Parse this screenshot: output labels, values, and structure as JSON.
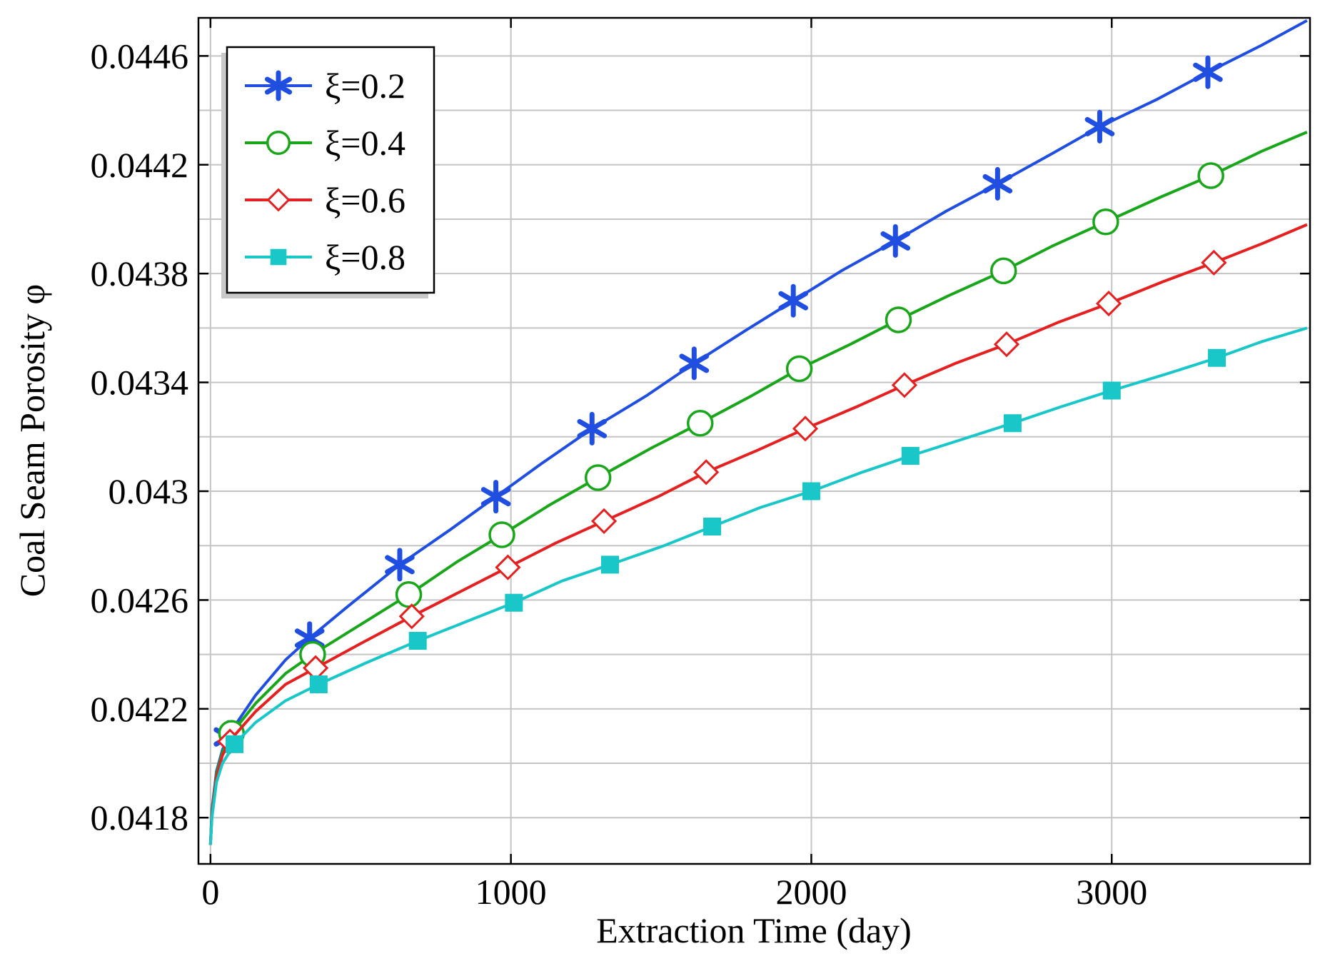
{
  "chart_data": {
    "type": "line",
    "title": "",
    "xlabel": "Extraction Time (day)",
    "ylabel": "Coal Seam Porosity φ",
    "xlim": [
      -40,
      3660
    ],
    "ylim": [
      0.04163,
      0.04474
    ],
    "xticks": [
      0,
      1000,
      2000,
      3000
    ],
    "xtick_labels": [
      "0",
      "1000",
      "2000",
      "3000"
    ],
    "yticks": [
      0.0418,
      0.0422,
      0.0426,
      0.043,
      0.0434,
      0.0438,
      0.0442,
      0.0446
    ],
    "ytick_labels": [
      "0.0418",
      "0.0422",
      "0.0426",
      "0.043",
      "0.0434",
      "0.0438",
      "0.0442",
      "0.0446"
    ],
    "grid": true,
    "legend_position": "top-left",
    "series": [
      {
        "name": "ξ=0.2",
        "color": "#1f4ee0",
        "marker": "asterisk",
        "x": [
          0,
          5,
          20,
          40,
          70,
          150,
          250,
          330,
          450,
          630,
          800,
          950,
          1100,
          1270,
          1450,
          1610,
          1780,
          1940,
          2100,
          2280,
          2450,
          2620,
          2800,
          2960,
          3150,
          3320,
          3500,
          3650
        ],
        "y": [
          0.0417,
          0.04183,
          0.04197,
          0.04205,
          0.04212,
          0.04225,
          0.04238,
          0.04246,
          0.04257,
          0.04273,
          0.04286,
          0.04298,
          0.0431,
          0.04323,
          0.04335,
          0.04347,
          0.04359,
          0.0437,
          0.04381,
          0.04392,
          0.04403,
          0.04413,
          0.04424,
          0.04434,
          0.04444,
          0.04454,
          0.04464,
          0.04473
        ],
        "marker_x": [
          60,
          330,
          630,
          950,
          1270,
          1610,
          1940,
          2280,
          2620,
          2960,
          3320
        ]
      },
      {
        "name": "ξ=0.4",
        "color": "#1aa61a",
        "marker": "circle",
        "x": [
          0,
          5,
          20,
          40,
          70,
          150,
          250,
          340,
          500,
          660,
          820,
          970,
          1130,
          1290,
          1470,
          1630,
          1800,
          1960,
          2130,
          2290,
          2460,
          2640,
          2800,
          2980,
          3160,
          3330,
          3500,
          3650
        ],
        "y": [
          0.0417,
          0.04182,
          0.04196,
          0.04204,
          0.04211,
          0.04222,
          0.04233,
          0.0424,
          0.04251,
          0.04262,
          0.04274,
          0.04284,
          0.04295,
          0.04305,
          0.04316,
          0.04325,
          0.04335,
          0.04345,
          0.04354,
          0.04363,
          0.04372,
          0.04381,
          0.0439,
          0.04399,
          0.04408,
          0.04416,
          0.04425,
          0.04432
        ],
        "marker_x": [
          70,
          340,
          660,
          970,
          1290,
          1630,
          1960,
          2290,
          2640,
          2980,
          3330
        ]
      },
      {
        "name": "ξ=0.6",
        "color": "#e52020",
        "marker": "diamond",
        "x": [
          0,
          5,
          20,
          40,
          70,
          150,
          250,
          350,
          500,
          670,
          830,
          990,
          1150,
          1310,
          1490,
          1650,
          1820,
          1980,
          2150,
          2310,
          2480,
          2650,
          2820,
          2990,
          3170,
          3340,
          3500,
          3650
        ],
        "y": [
          0.0417,
          0.04181,
          0.04195,
          0.04203,
          0.04209,
          0.04219,
          0.04229,
          0.04235,
          0.04244,
          0.04254,
          0.04263,
          0.04272,
          0.04281,
          0.04289,
          0.04298,
          0.04307,
          0.04315,
          0.04323,
          0.04331,
          0.04339,
          0.04347,
          0.04354,
          0.04362,
          0.04369,
          0.04377,
          0.04384,
          0.04391,
          0.04398
        ],
        "marker_x": [
          65,
          350,
          670,
          990,
          1310,
          1650,
          1980,
          2310,
          2650,
          2990,
          3340
        ]
      },
      {
        "name": "ξ=0.8",
        "color": "#19c6c8",
        "marker": "square",
        "x": [
          0,
          5,
          20,
          40,
          80,
          150,
          250,
          360,
          520,
          690,
          850,
          1010,
          1170,
          1330,
          1510,
          1670,
          1830,
          2000,
          2170,
          2330,
          2500,
          2670,
          2830,
          3000,
          3180,
          3350,
          3500,
          3650
        ],
        "y": [
          0.0417,
          0.0418,
          0.04193,
          0.042,
          0.04207,
          0.04215,
          0.04223,
          0.04229,
          0.04237,
          0.04245,
          0.04252,
          0.04259,
          0.04267,
          0.04273,
          0.0428,
          0.04287,
          0.04294,
          0.043,
          0.04307,
          0.04313,
          0.04319,
          0.04325,
          0.04331,
          0.04337,
          0.04343,
          0.04349,
          0.04355,
          0.0436
        ],
        "marker_x": [
          80,
          360,
          690,
          1010,
          1330,
          1670,
          2000,
          2330,
          2670,
          3000,
          3350
        ]
      }
    ]
  }
}
